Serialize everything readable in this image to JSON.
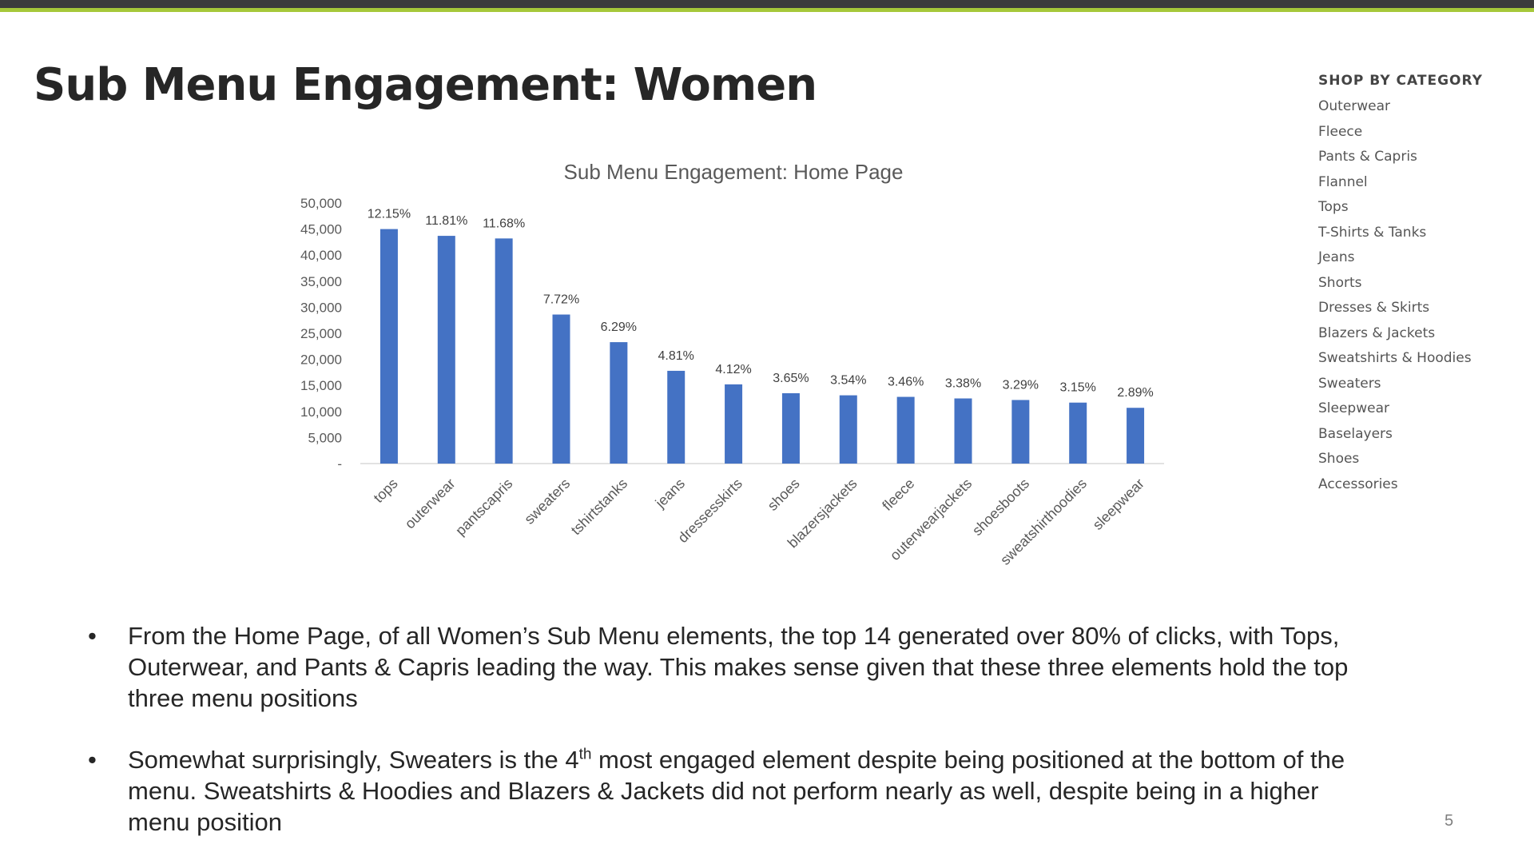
{
  "slide": {
    "title": "Sub Menu Engagement: Women",
    "page_number": "5"
  },
  "colors": {
    "top_bar": "#3c3c3c",
    "accent": "#a6c83a",
    "bar": "#4472c4"
  },
  "chart_data": {
    "type": "bar",
    "title": "Sub Menu Engagement: Home Page",
    "categories": [
      "tops",
      "outerwear",
      "pantscapris",
      "sweaters",
      "tshirtstanks",
      "jeans",
      "dressesskirts",
      "shoes",
      "blazersjackets",
      "fleece",
      "outerwearjackets",
      "shoesboots",
      "sweatshirthoodies",
      "sleepwear"
    ],
    "values": [
      45000,
      43700,
      43200,
      28600,
      23300,
      17800,
      15200,
      13500,
      13100,
      12800,
      12500,
      12200,
      11700,
      10700
    ],
    "data_labels": [
      "12.15%",
      "11.81%",
      "11.68%",
      "7.72%",
      "6.29%",
      "4.81%",
      "4.12%",
      "3.65%",
      "3.54%",
      "3.46%",
      "3.38%",
      "3.29%",
      "3.15%",
      "2.89%"
    ],
    "ylim": [
      0,
      50000
    ],
    "y_ticks": [
      0,
      5000,
      10000,
      15000,
      20000,
      25000,
      30000,
      35000,
      40000,
      45000,
      50000
    ],
    "y_tick_labels": [
      "-",
      "5,000",
      "10,000",
      "15,000",
      "20,000",
      "25,000",
      "30,000",
      "35,000",
      "40,000",
      "45,000",
      "50,000"
    ],
    "grid": false,
    "color": "#4472c4"
  },
  "menu": {
    "heading": "SHOP BY CATEGORY",
    "items": [
      "Outerwear",
      "Fleece",
      "Pants & Capris",
      "Flannel",
      "Tops",
      "T-Shirts & Tanks",
      "Jeans",
      "Shorts",
      "Dresses & Skirts",
      "Blazers & Jackets",
      "Sweatshirts & Hoodies",
      "Sweaters",
      "Sleepwear",
      "Baselayers",
      "Shoes",
      "Accessories"
    ]
  },
  "bullets": [
    {
      "text": "From the Home Page, of all Women’s Sub Menu elements, the top 14 generated over 80% of clicks, with Tops, Outerwear, and Pants & Capris leading the way. This makes sense given that these three elements hold the top three menu positions"
    },
    {
      "before": "Somewhat surprisingly, Sweaters is the 4",
      "sup": "th",
      "after": " most engaged element despite being positioned at the bottom of the menu. Sweatshirts & Hoodies and Blazers & Jackets did not perform nearly as well, despite being in a higher menu position"
    }
  ]
}
